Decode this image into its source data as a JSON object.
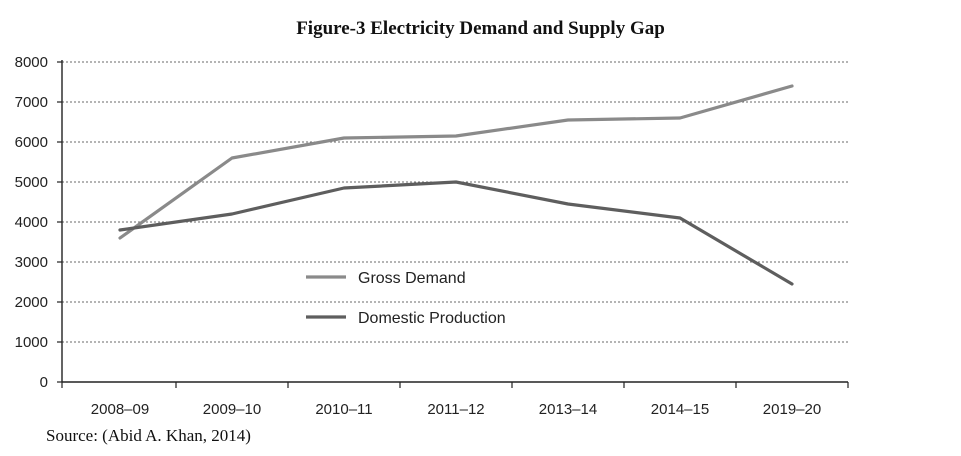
{
  "chart_data": {
    "type": "line",
    "title": "Figure-3 Electricity Demand and Supply Gap",
    "categories": [
      "2008–09",
      "2009–10",
      "2010–11",
      "2011–12",
      "2013–14",
      "2014–15",
      "2019–20"
    ],
    "series": [
      {
        "name": "Gross Demand",
        "values": [
          3600,
          5600,
          6100,
          6150,
          6550,
          6600,
          7400
        ],
        "color": "#8a8a8a"
      },
      {
        "name": "Domestic Production",
        "values": [
          3800,
          4200,
          4850,
          5000,
          4450,
          4100,
          2450
        ],
        "color": "#5e5e5e"
      }
    ],
    "yticks": [
      "0",
      "1000",
      "2000",
      "3000",
      "4000",
      "5000",
      "6000",
      "7000",
      "8000"
    ],
    "ylim": [
      0,
      8000
    ],
    "grid": true,
    "legend_position": "lower-center",
    "source": "Source: (Abid A. Khan, 2014)"
  }
}
